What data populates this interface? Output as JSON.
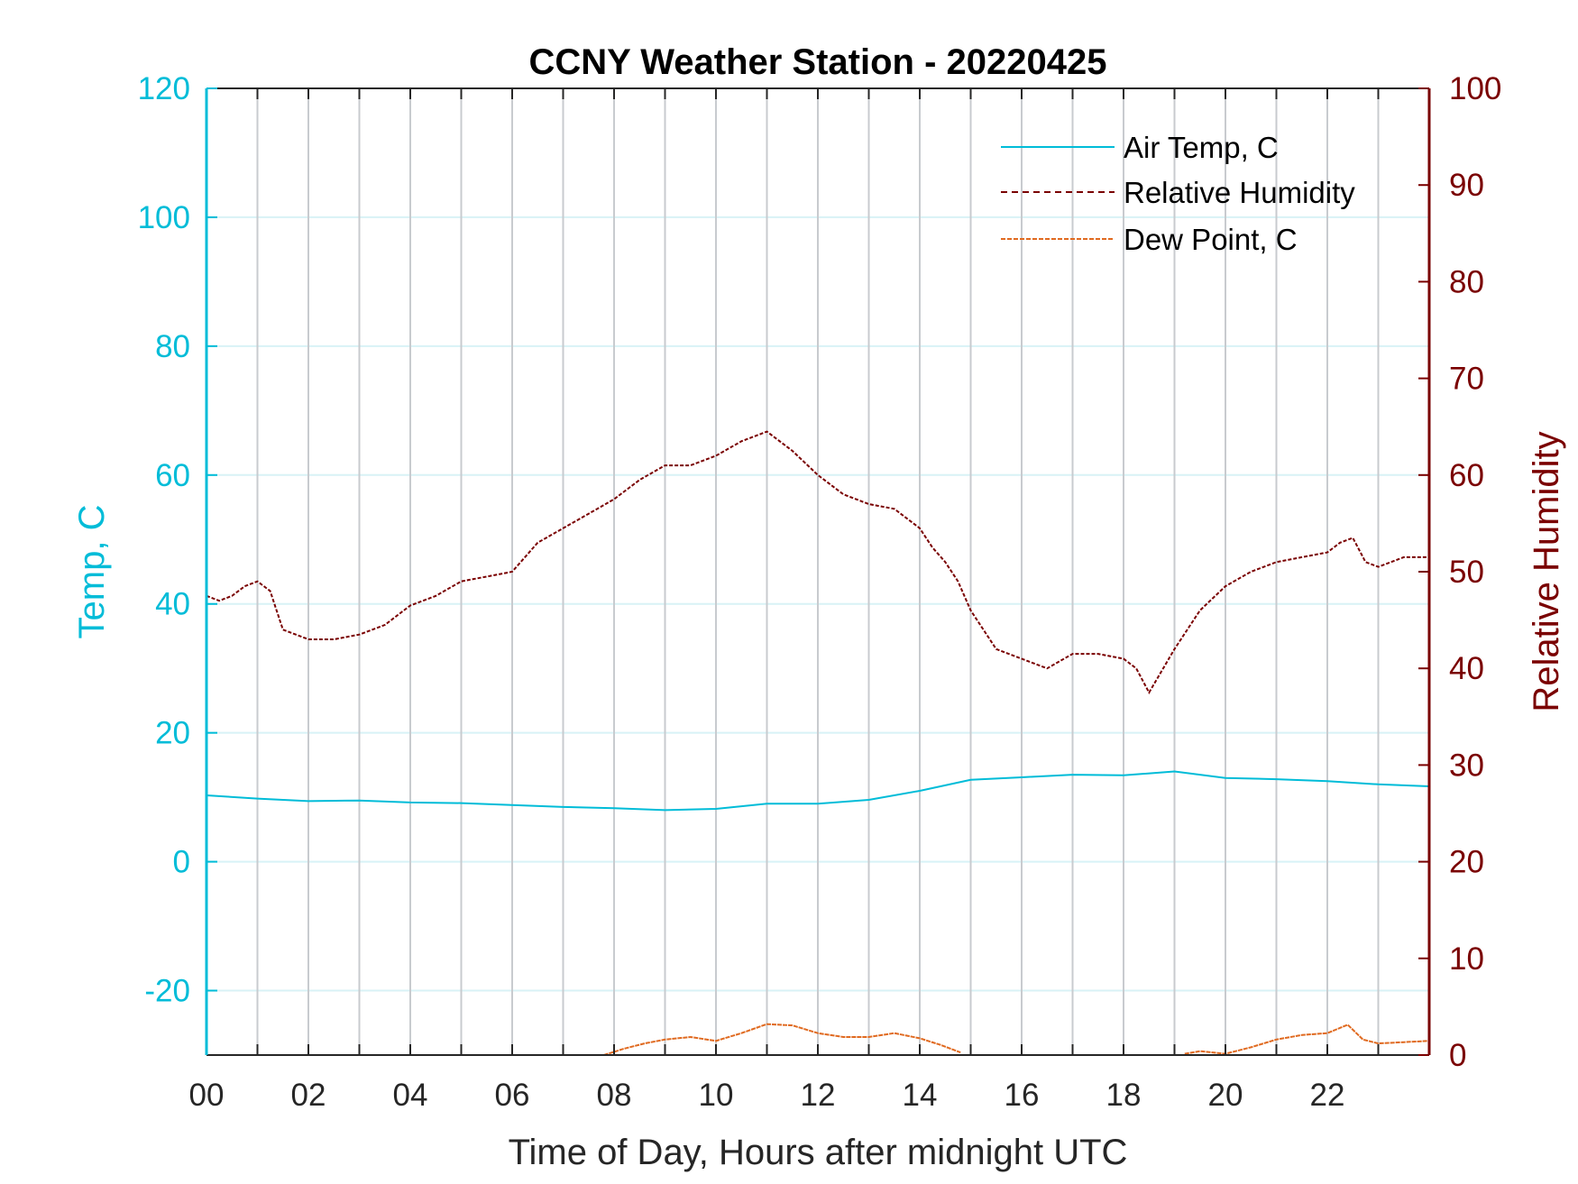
{
  "colors": {
    "air_temp": "#00BCD8",
    "humidity": "#7A0000",
    "dew_point": "#E06A20",
    "grid_vertical": "#C8CBCF",
    "grid_horizontal": "#D8F2F6",
    "frame": "#262626"
  },
  "chart_data": {
    "type": "line",
    "title": "CCNY Weather Station - 20220425",
    "xlabel": "Time of Day, Hours after midnight UTC",
    "ylabel_left": "Temp, C",
    "ylabel_right": "Relative Humidity",
    "xlim": [
      0,
      24
    ],
    "ylim_left": [
      -30,
      120
    ],
    "ylim_right": [
      0,
      100
    ],
    "x_ticks": [
      0,
      2,
      4,
      6,
      8,
      10,
      12,
      14,
      16,
      18,
      20,
      22
    ],
    "x_tick_labels": [
      "00",
      "02",
      "04",
      "06",
      "08",
      "10",
      "12",
      "14",
      "16",
      "18",
      "20",
      "22"
    ],
    "y_left_ticks": [
      -20,
      0,
      20,
      40,
      60,
      80,
      100,
      120
    ],
    "y_left_tick_labels": [
      "-20",
      "0",
      "20",
      "40",
      "60",
      "80",
      "100",
      "120"
    ],
    "y_right_ticks": [
      0,
      10,
      20,
      30,
      40,
      50,
      60,
      70,
      80,
      90,
      100
    ],
    "y_right_tick_labels": [
      "0",
      "10",
      "20",
      "30",
      "40",
      "50",
      "60",
      "70",
      "80",
      "90",
      "100"
    ],
    "grid": true,
    "legend_position": "top-right",
    "series": [
      {
        "name": "Air Temp, C",
        "axis": "left",
        "style": "solid",
        "x": [
          0,
          1,
          2,
          3,
          4,
          5,
          6,
          7,
          8,
          9,
          10,
          11,
          12,
          13,
          14,
          15,
          16,
          17,
          18,
          19,
          20,
          21,
          22,
          23,
          24
        ],
        "y": [
          10.3,
          9.8,
          9.4,
          9.5,
          9.2,
          9.1,
          8.8,
          8.5,
          8.3,
          8.0,
          8.2,
          9.0,
          9.0,
          9.6,
          11.0,
          12.7,
          13.1,
          13.5,
          13.4,
          14.0,
          13.0,
          12.8,
          12.5,
          12.0,
          11.7
        ]
      },
      {
        "name": "Relative Humidity",
        "axis": "right",
        "style": "dashed",
        "x": [
          0,
          0.25,
          0.5,
          0.75,
          1,
          1.25,
          1.5,
          2,
          2.5,
          3,
          3.5,
          4,
          4.5,
          5,
          5.5,
          6,
          6.5,
          7,
          7.5,
          8,
          8.5,
          9,
          9.5,
          10,
          10.5,
          11,
          11.5,
          12,
          12.5,
          13,
          13.5,
          14,
          14.25,
          14.5,
          14.75,
          15,
          15.5,
          16,
          16.5,
          17,
          17.5,
          18,
          18.25,
          18.5,
          19,
          19.5,
          20,
          20.5,
          21,
          21.5,
          22,
          22.25,
          22.5,
          22.75,
          23,
          23.5,
          24
        ],
        "y": [
          47.5,
          47,
          47.5,
          48.5,
          49,
          48,
          44,
          43,
          43,
          43.5,
          44.5,
          46.5,
          47.5,
          49,
          49.5,
          50,
          53,
          54.5,
          56,
          57.5,
          59.5,
          61,
          61,
          62,
          63.5,
          64.5,
          62.5,
          60,
          58,
          57,
          56.5,
          54.5,
          52.5,
          51,
          49,
          46,
          42,
          41,
          40,
          41.5,
          41.5,
          41,
          40,
          37.5,
          42,
          46,
          48.5,
          50,
          51,
          51.5,
          52,
          53,
          53.5,
          51,
          50.5,
          51.5,
          51.5
        ]
      },
      {
        "name": "Dew Point, C",
        "axis": "left",
        "style": "dashed",
        "x": [
          7.8,
          8.2,
          8.6,
          9,
          9.5,
          10,
          10.5,
          11,
          11.5,
          12,
          12.5,
          13,
          13.5,
          14,
          14.4,
          14.8
        ],
        "y": [
          -30,
          -29,
          -28.2,
          -27.6,
          -27.2,
          -27.8,
          -26.6,
          -25.2,
          -25.4,
          -26.6,
          -27.2,
          -27.2,
          -26.6,
          -27.4,
          -28.4,
          -29.6
        ],
        "x2": [
          19.2,
          19.5,
          20,
          20.5,
          21,
          21.5,
          22,
          22.4,
          22.7,
          23,
          23.5,
          24
        ],
        "y2": [
          -29.8,
          -29.4,
          -29.8,
          -28.8,
          -27.6,
          -26.9,
          -26.6,
          -25.3,
          -27.6,
          -28.2,
          -28.0,
          -27.8
        ]
      }
    ]
  }
}
